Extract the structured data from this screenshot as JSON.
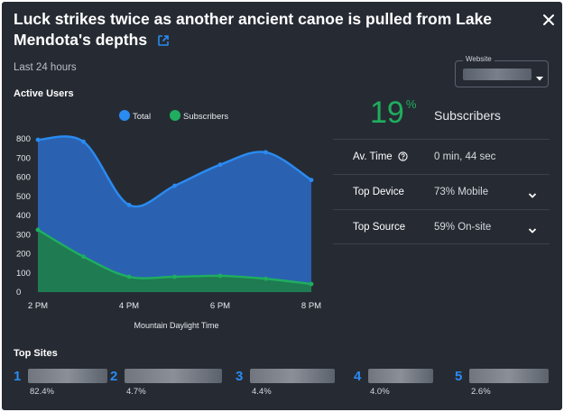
{
  "header": {
    "title": "Luck strikes twice as another ancient canoe is pulled from Lake Mendota's depths",
    "external_link_icon": "external-link-icon",
    "close_icon": "close-icon"
  },
  "filters": {
    "time_range": "Last 24 hours",
    "website_label": "Website"
  },
  "active_users": {
    "heading": "Active Users",
    "timezone_label": "Mountain Daylight Time",
    "chart_data": {
      "type": "area",
      "x": [
        2,
        3,
        4,
        5,
        6,
        7,
        8
      ],
      "xticks": [
        "2 PM",
        "4 PM",
        "6 PM",
        "8 PM"
      ],
      "xtick_values": [
        2,
        4,
        6,
        8
      ],
      "yticks": [
        "0",
        "100",
        "200",
        "300",
        "400",
        "500",
        "600",
        "700",
        "800"
      ],
      "ylim": [
        0,
        800
      ],
      "xlim": [
        2,
        8
      ],
      "grid": false,
      "legend_position": "top",
      "xlabel": "Mountain Daylight Time",
      "series": [
        {
          "name": "Total",
          "color": "#2a8bf2",
          "fill": "#2a65b8",
          "values": [
            795,
            785,
            455,
            555,
            665,
            730,
            585
          ]
        },
        {
          "name": "Subscribers",
          "color": "#1fae5f",
          "fill": "#1f7c4c",
          "values": [
            325,
            185,
            80,
            80,
            85,
            70,
            42
          ]
        }
      ]
    }
  },
  "summary": {
    "subscriber_pct": "19",
    "pct_symbol": "%",
    "subscriber_label": "Subscribers",
    "rows": [
      {
        "key": "Av. Time",
        "value": "0 min, 44 sec",
        "icon": "help-circle-icon"
      },
      {
        "key": "Top Device",
        "value": "73% Mobile",
        "icon": "chevron-down-icon"
      },
      {
        "key": "Top Source",
        "value": "59% On-site",
        "icon": "chevron-down-icon"
      }
    ]
  },
  "top_sites": {
    "heading": "Top Sites",
    "items": [
      {
        "rank": "1",
        "pct": "82.4%"
      },
      {
        "rank": "2",
        "pct": "4.7%"
      },
      {
        "rank": "3",
        "pct": "4.4%"
      },
      {
        "rank": "4",
        "pct": "4.0%"
      },
      {
        "rank": "5",
        "pct": "2.6%"
      }
    ]
  }
}
